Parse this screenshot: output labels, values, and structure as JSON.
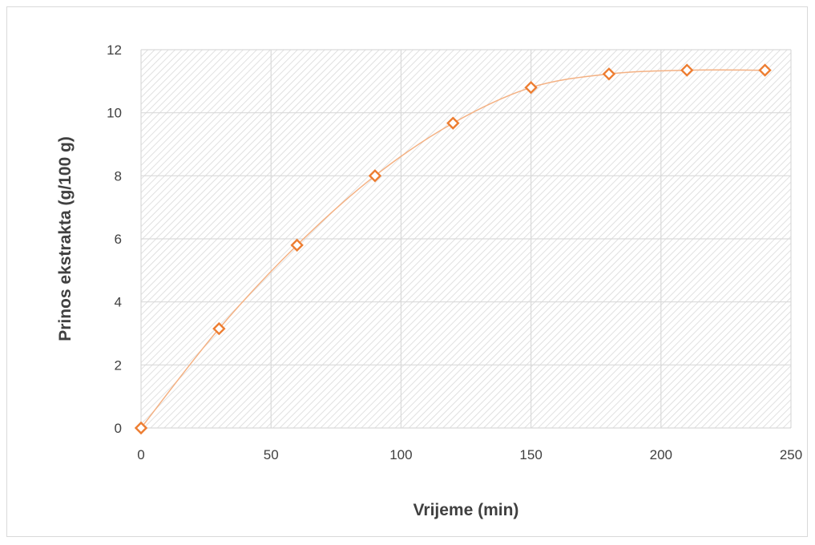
{
  "chart_data": {
    "type": "scatter",
    "xlabel": "Vrijeme (min)",
    "ylabel": "Prinos ekstrakta (g/100 g)",
    "xlim": [
      0,
      250
    ],
    "ylim": [
      0,
      12
    ],
    "x_ticks": [
      0,
      50,
      100,
      150,
      200,
      250
    ],
    "y_ticks": [
      0,
      2,
      4,
      6,
      8,
      10,
      12
    ],
    "x_tick_labels": [
      "0",
      "50",
      "100",
      "150",
      "200",
      "250"
    ],
    "y_tick_labels": [
      "0",
      "2",
      "4",
      "6",
      "8",
      "10",
      "12"
    ],
    "grid": true,
    "smooth_line": true,
    "marker": "diamond-open",
    "series": [
      {
        "x": [
          0,
          30,
          60,
          90,
          120,
          150,
          180,
          210,
          240
        ],
        "y": [
          0,
          3.15,
          5.8,
          8.0,
          9.67,
          10.8,
          11.23,
          11.35,
          11.35
        ]
      }
    ],
    "colors": {
      "series": "#ed7d31",
      "line": "#f4b183",
      "grid": "#d9d9d9",
      "hatch": "#d9d9d9"
    }
  }
}
